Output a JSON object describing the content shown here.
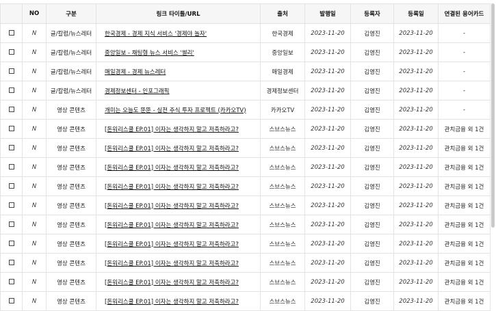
{
  "columns": [
    "",
    "NO",
    "구분",
    "링크 타이틀/URL",
    "출처",
    "발행일",
    "등록자",
    "등록일",
    "연결된 용어카드"
  ],
  "rows": [
    {
      "no": "N",
      "category": "글/칼럼/뉴스레터",
      "title": "한국경제 - 경제 지식 서비스 '경제야 놀자'",
      "source": "한국경제",
      "published": "2023-11-20",
      "registrant": "김영진",
      "registered": "2023-11-20",
      "linked": "-"
    },
    {
      "no": "N",
      "category": "글/칼럼/뉴스레터",
      "title": "중앙일보 - 채팅형 뉴스 서비스 '썰리'",
      "source": "중앙일보",
      "published": "2023-11-20",
      "registrant": "김영진",
      "registered": "2023-11-20",
      "linked": "-"
    },
    {
      "no": "N",
      "category": "글/칼럼/뉴스레터",
      "title": "매일경제 - 경제 뉴스레터",
      "source": "매일경제",
      "published": "2023-11-20",
      "registrant": "김영진",
      "registered": "2023-11-20",
      "linked": "-"
    },
    {
      "no": "N",
      "category": "글/칼럼/뉴스레터",
      "title": "경제정보센터 - 인포그래픽",
      "source": "경제정보센터",
      "published": "2023-11-20",
      "registrant": "김영진",
      "registered": "2023-11-20",
      "linked": "-"
    },
    {
      "no": "N",
      "category": "영상 콘텐츠",
      "title": "개미는 오늘도 뚠뚠 - 실전 주식 투자 프로젝트 (카카오TV)",
      "source": "카카오TV",
      "published": "2023-11-20",
      "registrant": "김영진",
      "registered": "2023-11-20",
      "linked": "-"
    },
    {
      "no": "N",
      "category": "영상 콘텐츠",
      "title": "[돈워리스쿨 EP.01] 이자는 생각하지 말고 저축하라고?",
      "source": "스브스뉴스",
      "published": "2023-11-20",
      "registrant": "김영진",
      "registered": "2023-11-20",
      "linked": "관치금융 외 1건"
    },
    {
      "no": "N",
      "category": "영상 콘텐츠",
      "title": "[돈워리스쿨 EP.01] 이자는 생각하지 말고 저축하라고?",
      "source": "스브스뉴스",
      "published": "2023-11-20",
      "registrant": "김영진",
      "registered": "2023-11-20",
      "linked": "관치금융 외 1건"
    },
    {
      "no": "N",
      "category": "영상 콘텐츠",
      "title": "[돈워리스쿨 EP.01] 이자는 생각하지 말고 저축하라고?",
      "source": "스브스뉴스",
      "published": "2023-11-20",
      "registrant": "김영진",
      "registered": "2023-11-20",
      "linked": "관치금융 외 1건"
    },
    {
      "no": "N",
      "category": "영상 콘텐츠",
      "title": "[돈워리스쿨 EP.01] 이자는 생각하지 말고 저축하라고?",
      "source": "스브스뉴스",
      "published": "2023-11-20",
      "registrant": "김영진",
      "registered": "2023-11-20",
      "linked": "관치금융 외 1건"
    },
    {
      "no": "N",
      "category": "영상 콘텐츠",
      "title": "[돈워리스쿨 EP.01] 이자는 생각하지 말고 저축하라고?",
      "source": "스브스뉴스",
      "published": "2023-11-20",
      "registrant": "김영진",
      "registered": "2023-11-20",
      "linked": "관치금융 외 1건"
    },
    {
      "no": "N",
      "category": "영상 콘텐츠",
      "title": "[돈워리스쿨 EP.01] 이자는 생각하지 말고 저축하라고?",
      "source": "스브스뉴스",
      "published": "2023-11-20",
      "registrant": "김영진",
      "registered": "2023-11-20",
      "linked": "관치금융 외 1건"
    },
    {
      "no": "N",
      "category": "영상 콘텐츠",
      "title": "[돈워리스쿨 EP.01] 이자는 생각하지 말고 저축하라고?",
      "source": "스브스뉴스",
      "published": "2023-11-20",
      "registrant": "김영진",
      "registered": "2023-11-20",
      "linked": "관치금융 외 1건"
    },
    {
      "no": "N",
      "category": "영상 콘텐츠",
      "title": "[돈워리스쿨 EP.01] 이자는 생각하지 말고 저축하라고?",
      "source": "스브스뉴스",
      "published": "2023-11-20",
      "registrant": "김영진",
      "registered": "2023-11-20",
      "linked": "관치금융 외 1건"
    },
    {
      "no": "N",
      "category": "영상 콘텐츠",
      "title": "[돈워리스쿨 EP.01] 이자는 생각하지 말고 저축하라고?",
      "source": "스브스뉴스",
      "published": "2023-11-20",
      "registrant": "김영진",
      "registered": "2023-11-20",
      "linked": "관치금융 외 1건"
    },
    {
      "no": "N",
      "category": "영상 콘텐츠",
      "title": "[돈워리스쿨 EP.01] 이자는 생각하지 말고 저축하라고?",
      "source": "스브스뉴스",
      "published": "2023-11-20",
      "registrant": "김영진",
      "registered": "2023-11-20",
      "linked": "관치금융 외 1건"
    }
  ]
}
